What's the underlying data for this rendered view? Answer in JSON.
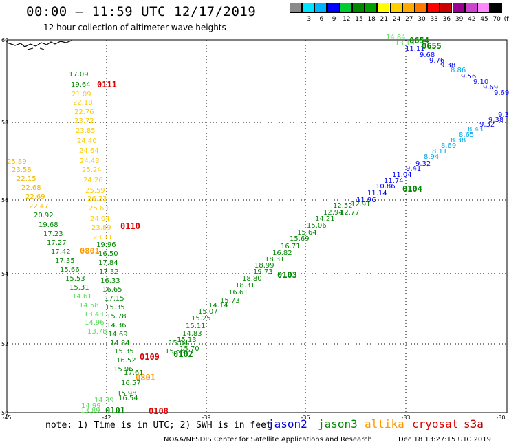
{
  "title": "00:00 – 11:59 UTC 12/17/2019",
  "subtitle": "12 hour collection of altimeter wave heights",
  "legend": {
    "unit": "(ft)",
    "bins": [
      {
        "label": "",
        "color": "#8a8a8a"
      },
      {
        "label": "3",
        "color": "#00e5ff"
      },
      {
        "label": "6",
        "color": "#00b4ff"
      },
      {
        "label": "9",
        "color": "#0000ff"
      },
      {
        "label": "12",
        "color": "#00cc33"
      },
      {
        "label": "15",
        "color": "#008800"
      },
      {
        "label": "18",
        "color": "#00a000"
      },
      {
        "label": "21",
        "color": "#ffff00"
      },
      {
        "label": "24",
        "color": "#ffd000"
      },
      {
        "label": "27",
        "color": "#ffaa00"
      },
      {
        "label": "30",
        "color": "#ff7800"
      },
      {
        "label": "33",
        "color": "#ff0000"
      },
      {
        "label": "36",
        "color": "#cc0000"
      },
      {
        "label": "39",
        "color": "#9a0090"
      },
      {
        "label": "42",
        "color": "#cc44cc"
      },
      {
        "label": "45",
        "color": "#ff88ff"
      },
      {
        "label": "70",
        "color": "#000000"
      }
    ]
  },
  "axes": {
    "lon_ticks": [
      "-45",
      "-42",
      "-39",
      "-36",
      "-33",
      "-30"
    ],
    "lat_ticks": [
      "50",
      "52",
      "54",
      "56",
      "58",
      "60"
    ],
    "lon_range": [
      -45,
      -30
    ],
    "lat_range": [
      50,
      60
    ],
    "lat_tick_values": [
      50,
      52,
      54,
      56,
      58,
      60
    ],
    "lon_tick_values": [
      -45,
      -42,
      -39,
      -36,
      -33,
      -30
    ]
  },
  "colors": {
    "jason2": "#0000ff",
    "jason3": "#008800",
    "jason3_light": "#44dd44",
    "altika": "#ff9900",
    "cryosat": "#dd0000",
    "s3a": "#dd0000",
    "lightgreen": "#55dd55",
    "cyan": "#00aaee",
    "yellow": "#ffcc00",
    "gold": "#eeb800"
  },
  "tracks": [
    {
      "color": "jason3",
      "values": [
        "17.09",
        "19.64"
      ]
    },
    {
      "color": "yellow",
      "values": [
        "21.09",
        "22.18",
        "22.76",
        "23.72",
        "23.85",
        "24.40",
        "24.64",
        "24.43",
        "25.24",
        "24.26",
        "25.59",
        "26.23",
        "25.63",
        "24.04",
        "23.89",
        "23.11"
      ]
    },
    {
      "color": "gold",
      "values": [
        "25.89",
        "23.58",
        "22.15",
        "22.68",
        "22.69",
        "22.47"
      ]
    },
    {
      "color": "jason3",
      "values": [
        "20.92",
        "19.68",
        "17.23",
        "17.27",
        "17.42",
        "17.35",
        "15.66",
        "15.53",
        "15.31"
      ]
    },
    {
      "color": "lightgreen",
      "values": [
        "14.61",
        "14.58",
        "13.43",
        "14.96",
        "13.78"
      ]
    },
    {
      "color": "jason3",
      "values": [
        "19.96",
        "16.50",
        "17.84",
        "17.32",
        "16.33",
        "16.65",
        "17.15",
        "15.35",
        "15.78",
        "14.36",
        "14.69",
        "14.84",
        "15.35",
        "16.52",
        "15.96",
        "17.61",
        "16.57",
        "15.98",
        "16.54"
      ]
    },
    {
      "color": "lightgreen",
      "values": [
        "13.89",
        "14.99",
        "14.39"
      ]
    },
    {
      "color": "jason3",
      "values": [
        "15.13",
        "15.04",
        "15.50",
        "15.70",
        "14.83",
        "15.11",
        "15.25",
        "15.07",
        "14.14",
        "15.73",
        "16.61",
        "18.31",
        "18.80",
        "19.73",
        "18.99",
        "18.31",
        "16.82",
        "16.71",
        "15.69",
        "15.64",
        "15.06",
        "14.21",
        "12.94",
        "12.52",
        "12.77",
        "12.91"
      ]
    },
    {
      "color": "jason2",
      "values": [
        "11.96",
        "11.14",
        "10.86",
        "11.74",
        "11.04",
        "9.41",
        "9.32"
      ]
    },
    {
      "color": "cyan",
      "values": [
        "8.94",
        "8.11",
        "8.69",
        "8.38",
        "8.65",
        "8.43"
      ]
    },
    {
      "color": "jason2",
      "values": [
        "9.32",
        "9.38",
        "9.31"
      ]
    },
    {
      "color": "lightgreen",
      "values": [
        "14.84",
        "13.19"
      ]
    },
    {
      "color": "jason2",
      "values": [
        "11.11",
        "9.68",
        "9.76",
        "9.38"
      ]
    },
    {
      "color": "cyan",
      "values": [
        "8.86"
      ]
    },
    {
      "color": "jason2",
      "values": [
        "9.56",
        "9.10",
        "9.69",
        "9.69"
      ]
    }
  ],
  "time_labels": [
    {
      "text": "0111",
      "color": "cryosat"
    },
    {
      "text": "0110",
      "color": "cryosat"
    },
    {
      "text": "0801",
      "color": "altika"
    },
    {
      "text": "0109",
      "color": "cryosat"
    },
    {
      "text": "0102",
      "color": "jason3"
    },
    {
      "text": "0801",
      "color": "altika"
    },
    {
      "text": "0101",
      "color": "jason3"
    },
    {
      "text": "0108",
      "color": "cryosat"
    },
    {
      "text": "0103",
      "color": "jason3"
    },
    {
      "text": "0104",
      "color": "jason3"
    },
    {
      "text": "0654",
      "color": "jason3"
    },
    {
      "text": "0655",
      "color": "jason3"
    }
  ],
  "note": "note: 1) Time is in UTC; 2) SWH is in feet",
  "satellites": [
    {
      "name": "jason2",
      "color": "#0000dd"
    },
    {
      "name": "jason3",
      "color": "#008800"
    },
    {
      "name": "altika",
      "color": "#ff9900"
    },
    {
      "name": "cryosat",
      "color": "#dd0000"
    },
    {
      "name": "s3a",
      "color": "#bb0000"
    }
  ],
  "credit": "NOAA/NESDIS Center for Satellite Applications and Research",
  "timestamp": "Dec 18 13:27:15 UTC 2019"
}
